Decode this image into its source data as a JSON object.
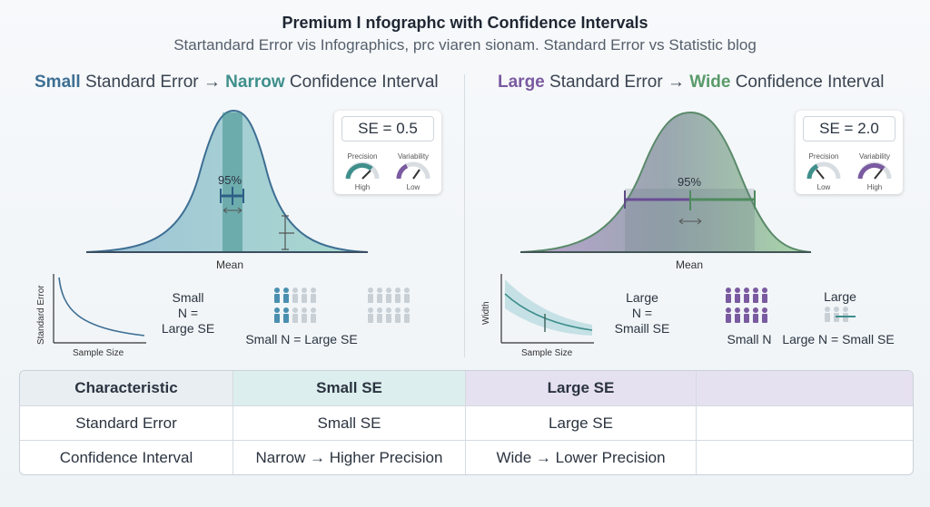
{
  "header": {
    "title": "Premium I nfographc with Confidence Intervals",
    "subtitle": "Startandard Error vis Infographics, prc viaren sionam. Standard Error vs Statistic blog"
  },
  "left": {
    "heading": {
      "w1": "Small",
      "w2": " Standard Error → ",
      "w3": "Narrow",
      "w4": " Confidence Interval"
    },
    "ci_label": "95%",
    "mean_label": "Mean",
    "se_value": "SE = 0.5",
    "gauge1": {
      "label": "Precision",
      "sub": "High",
      "level": 0.8
    },
    "gauge2": {
      "label": "Variability",
      "sub": "Low",
      "level": 0.3
    },
    "graph": {
      "ylabel": "Standard Error",
      "xlabel": "Sample Size"
    },
    "note1": [
      "Small",
      "N =",
      "Large SE"
    ],
    "note2": "Small N = Large SE"
  },
  "right": {
    "heading": {
      "w1": "Large",
      "w2": " Standard Error → ",
      "w3": "Wide",
      "w4": " Confidence Interval"
    },
    "ci_label": "95%",
    "mean_label": "Mean",
    "se_value": "SE = 2.0",
    "gauge1": {
      "label": "Precision",
      "sub": "Low",
      "level": 0.3
    },
    "gauge2": {
      "label": "Variability",
      "sub": "High",
      "level": 0.8
    },
    "graph": {
      "ylabel": "Width",
      "xlabel": "Sample Size"
    },
    "note1": [
      "Large",
      "N =",
      "Smaill SE"
    ],
    "note2a": "Large",
    "note2b": "Small N",
    "note2c": "Large N = Small SE"
  },
  "table": {
    "headers": [
      "Characteristic",
      "Small SE",
      "Large SE",
      ""
    ],
    "rows": [
      [
        "Standard Error",
        "Small SE",
        "Large SE",
        ""
      ],
      [
        "Confidence Interval",
        "Narrow → Higher Precision",
        "Wide → Lower Precision",
        ""
      ]
    ]
  },
  "colors": {
    "teal": "#3f8f8c",
    "blue": "#3e6f94",
    "purple": "#7a5aa0",
    "green": "#5a9a6a"
  }
}
